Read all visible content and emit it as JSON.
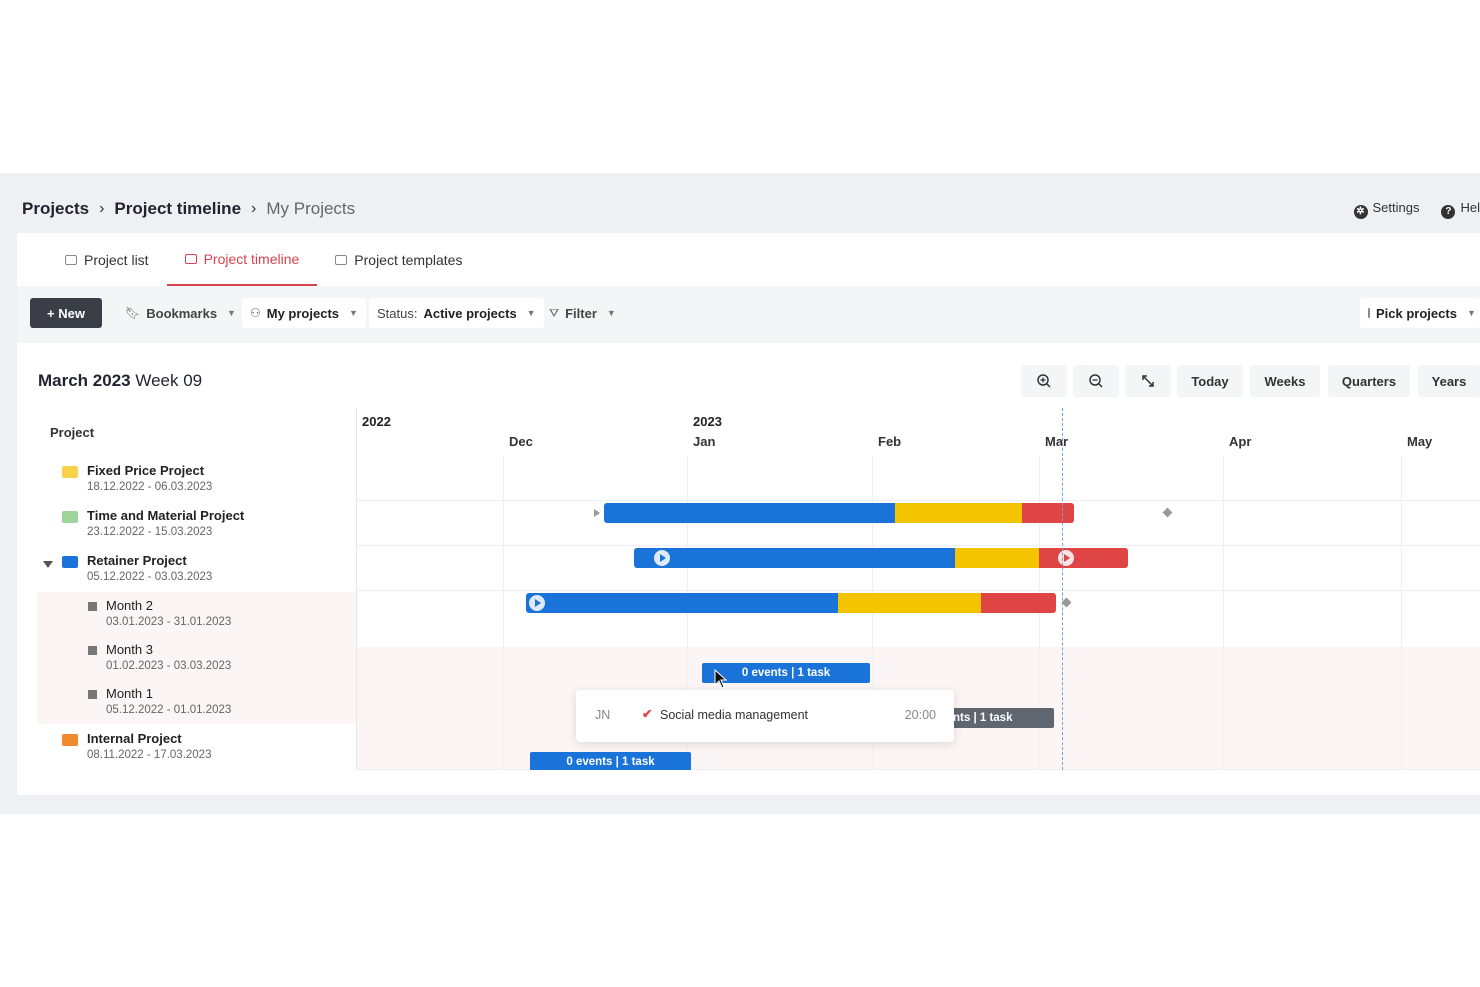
{
  "breadcrumb": {
    "root": "Projects",
    "section": "Project timeline",
    "current": "My Projects",
    "separator": "›"
  },
  "topbar": {
    "settings": "Settings",
    "help": "Hel"
  },
  "tabs": [
    {
      "label": "Project list"
    },
    {
      "label": "Project timeline"
    },
    {
      "label": "Project templates"
    }
  ],
  "toolbar": {
    "new_label": "+ New",
    "bookmarks_label": "Bookmarks",
    "myprojects_label": "My projects",
    "status_prefix": "Status:",
    "status_value": "Active projects",
    "filter_label": "Filter",
    "pick_label": "Pick projects"
  },
  "timeline": {
    "month": "March 2023",
    "week": "Week 09",
    "today_label": "Today",
    "weeks_label": "Weeks",
    "quarters_label": "Quarters",
    "years_label": "Years",
    "column_header": "Project",
    "years": [
      "2022",
      "2023"
    ],
    "months": [
      "Dec",
      "Jan",
      "Feb",
      "Mar",
      "Apr",
      "May"
    ]
  },
  "projects": [
    {
      "name": "Fixed Price Project",
      "dates": "18.12.2022 - 06.03.2023",
      "color": "#f8d34a"
    },
    {
      "name": "Time and Material Project",
      "dates": "23.12.2022 - 15.03.2023",
      "color": "#9ed49a"
    },
    {
      "name": "Retainer Project",
      "dates": "05.12.2022 - 03.03.2023",
      "color": "#1a73d9"
    },
    {
      "name": "Month 2",
      "dates": "03.01.2023 - 31.01.2023"
    },
    {
      "name": "Month 3",
      "dates": "01.02.2023 - 03.03.2023"
    },
    {
      "name": "Month 1",
      "dates": "05.12.2022 - 01.01.2023"
    },
    {
      "name": "Internal Project",
      "dates": "08.11.2022 - 17.03.2023",
      "color": "#f08a2c"
    }
  ],
  "chips": {
    "month2": "0 events | 1 task",
    "month3": "nts | 1 task",
    "month1": "0 events | 1 task"
  },
  "popup": {
    "initials": "JN",
    "task": "Social media management",
    "time": "20:00"
  },
  "colors": {
    "blue": "#1a73d9",
    "yellow": "#f5c400",
    "red": "#e04545",
    "accent": "#d6434f"
  }
}
